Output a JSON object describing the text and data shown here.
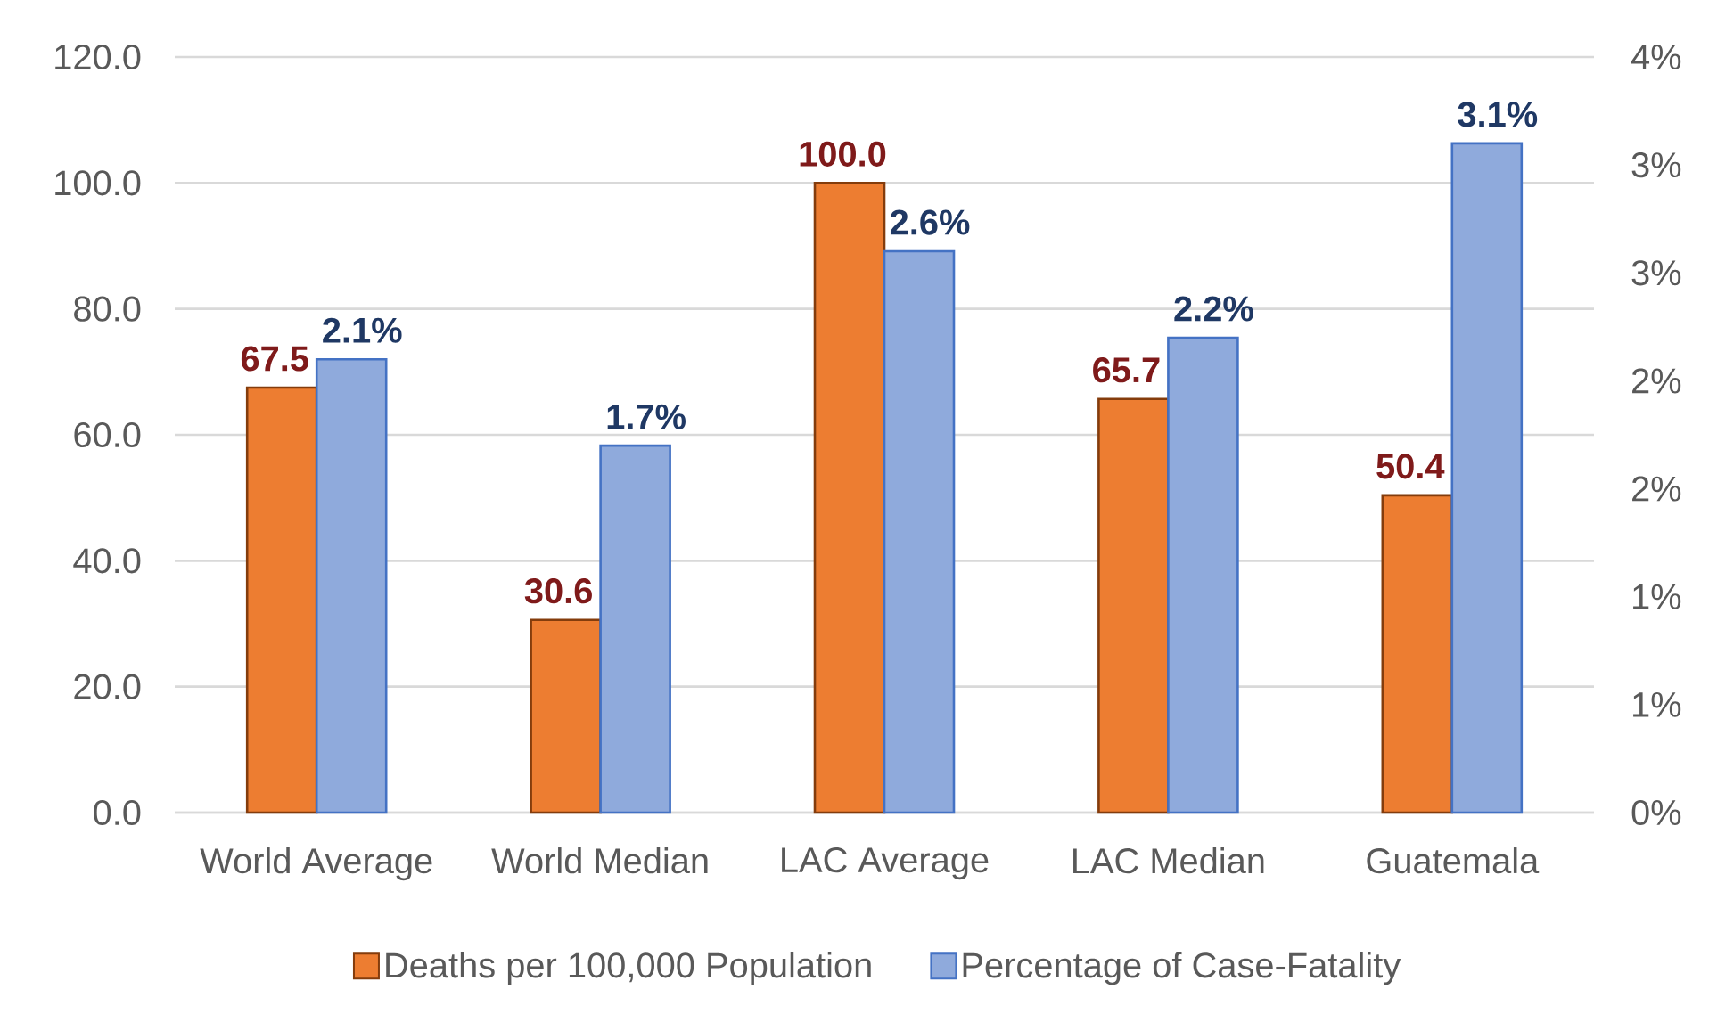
{
  "chart_data": {
    "type": "bar",
    "categories": [
      "World Average",
      "World Median",
      "LAC Average",
      "LAC Median",
      "Guatemala"
    ],
    "series": [
      {
        "name": "Deaths per 100,000 Population",
        "color": "#ED7D31",
        "values": [
          67.5,
          30.6,
          100.0,
          65.7,
          50.4
        ],
        "value_labels": [
          "67.5",
          "30.6",
          "100.0",
          "65.7",
          "50.4"
        ]
      },
      {
        "name": "Percentage of Case-Fatality",
        "color": "#8FAADC",
        "axis": "y2",
        "values": [
          2.1,
          1.7,
          2.6,
          2.2,
          3.1
        ],
        "value_labels": [
          "2.1%",
          "1.7%",
          "2.6%",
          "2.2%",
          "3.1%"
        ]
      }
    ],
    "ylim": [
      0,
      120
    ],
    "yticks": [
      {
        "value": 0,
        "label": "0.0"
      },
      {
        "value": 20,
        "label": "20.0"
      },
      {
        "value": 40,
        "label": "40.0"
      },
      {
        "value": 60,
        "label": "60.0"
      },
      {
        "value": 80,
        "label": "80.0"
      },
      {
        "value": 100,
        "label": "100.0"
      },
      {
        "value": 120,
        "label": "120.0"
      }
    ],
    "y2lim": [
      0,
      3.5
    ],
    "y2ticks": [
      {
        "value": 0,
        "label": "0%"
      },
      {
        "value": 0.5,
        "label": "1%"
      },
      {
        "value": 1,
        "label": "1%"
      },
      {
        "value": 1.5,
        "label": "2%"
      },
      {
        "value": 2,
        "label": "2%"
      },
      {
        "value": 2.5,
        "label": "3%"
      },
      {
        "value": 3,
        "label": "3%"
      },
      {
        "value": 3.5,
        "label": "4%"
      }
    ],
    "grid": "y",
    "legend": "bottom"
  }
}
